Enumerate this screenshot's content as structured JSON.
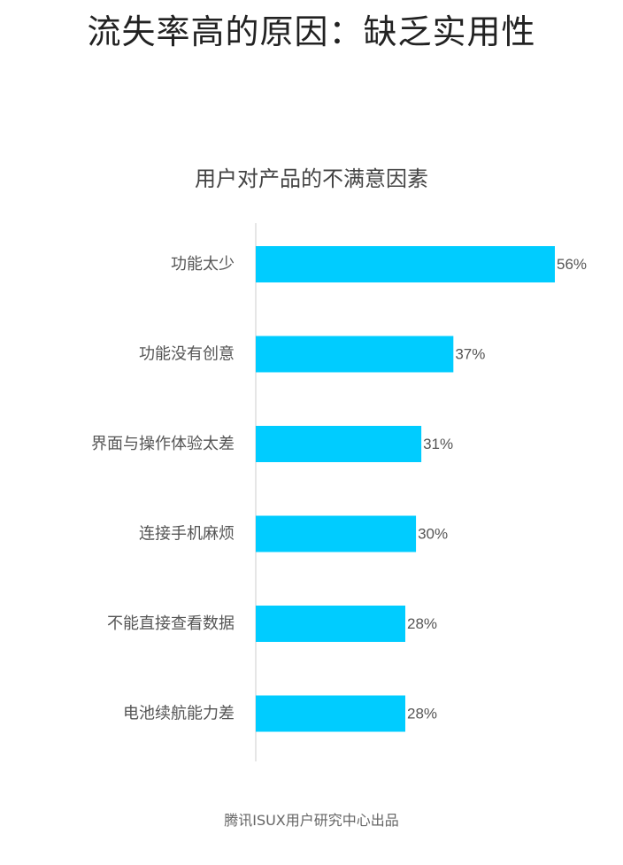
{
  "page": {
    "title": "流失率高的原因：缺乏实用性",
    "footer": "腾讯ISUX用户研究中心出品"
  },
  "chart_data": {
    "type": "bar",
    "orientation": "horizontal",
    "title": "用户对产品的不满意因素",
    "categories": [
      "功能太少",
      "功能没有创意",
      "界面与操作体验太差",
      "连接手机麻烦",
      "不能直接查看数据",
      "电池续航能力差"
    ],
    "values": [
      56,
      37,
      31,
      30,
      28,
      28
    ],
    "value_labels": [
      "56%",
      "37%",
      "31%",
      "30%",
      "28%",
      "28%"
    ],
    "unit": "%",
    "xlim": [
      0,
      56
    ],
    "grid": false,
    "legend": "none",
    "bar_color": "#00ccff",
    "axis_color": "#e6e6e6"
  }
}
